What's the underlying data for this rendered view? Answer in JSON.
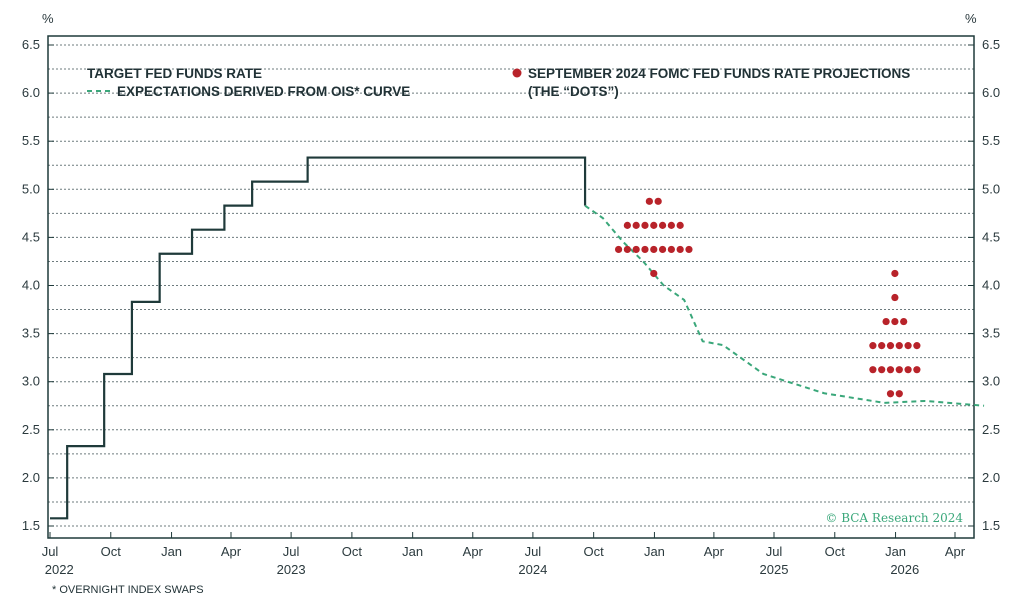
{
  "chart_data": {
    "type": "line",
    "y_unit_left": "%",
    "y_unit_right": "%",
    "ylim": [
      1.5,
      6.5
    ],
    "yticks": [
      "1.5",
      "2.0",
      "2.5",
      "3.0",
      "3.5",
      "4.0",
      "4.5",
      "5.0",
      "5.5",
      "6.0",
      "6.5"
    ],
    "grid": "horizontal dotted",
    "legend_left": [
      "TARGET FED FUNDS RATE",
      "EXPECTATIONS DERIVED FROM OIS* CURVE"
    ],
    "legend_right": [
      "SEPTEMBER 2024 FOMC FED FUNDS RATE PROJECTIONS",
      "(THE “DOTS”)"
    ],
    "x_month_ticks": [
      "Jul",
      "Oct",
      "Jan",
      "Apr",
      "Jul",
      "Oct",
      "Jan",
      "Apr",
      "Jul",
      "Oct",
      "Jan",
      "Apr",
      "Jul",
      "Oct",
      "Jan",
      "Apr"
    ],
    "x_year_labels": [
      "2022",
      "2023",
      "2024",
      "2025",
      "2026"
    ],
    "footnote": "* OVERNIGHT INDEX SWAPS",
    "credit": "© BCA Research 2024",
    "colors": {
      "target": "#1f3a3a",
      "ois": "#3aa77a",
      "dots": "#b8232a",
      "grid": "#6d7b7e"
    },
    "target_fed_funds_rate": [
      {
        "x": "2022-07-01",
        "y": 1.58
      },
      {
        "x": "2022-07-27",
        "y": 2.33
      },
      {
        "x": "2022-09-21",
        "y": 3.08
      },
      {
        "x": "2022-11-02",
        "y": 3.83
      },
      {
        "x": "2022-12-14",
        "y": 4.33
      },
      {
        "x": "2023-02-01",
        "y": 4.58
      },
      {
        "x": "2023-03-22",
        "y": 4.83
      },
      {
        "x": "2023-05-03",
        "y": 5.08
      },
      {
        "x": "2023-07-26",
        "y": 5.33
      },
      {
        "x": "2024-09-18",
        "y": 4.83
      }
    ],
    "ois_expectations": [
      {
        "x": "2024-09-18",
        "y": 4.83
      },
      {
        "x": "2024-10-15",
        "y": 4.7
      },
      {
        "x": "2024-11-15",
        "y": 4.45
      },
      {
        "x": "2024-12-15",
        "y": 4.25
      },
      {
        "x": "2025-01-15",
        "y": 4.0
      },
      {
        "x": "2025-02-15",
        "y": 3.85
      },
      {
        "x": "2025-03-15",
        "y": 3.42
      },
      {
        "x": "2025-04-15",
        "y": 3.38
      },
      {
        "x": "2025-06-15",
        "y": 3.08
      },
      {
        "x": "2025-09-15",
        "y": 2.88
      },
      {
        "x": "2025-12-15",
        "y": 2.78
      },
      {
        "x": "2026-02-15",
        "y": 2.8
      },
      {
        "x": "2026-05-15",
        "y": 2.75
      }
    ],
    "dots_2024": {
      "x_center": "2024-12-31",
      "levels": [
        {
          "y": 4.875,
          "count": 2
        },
        {
          "y": 4.625,
          "count": 7
        },
        {
          "y": 4.375,
          "count": 9
        },
        {
          "y": 4.125,
          "count": 1
        }
      ]
    },
    "dots_2025": {
      "x_center": "2025-12-31",
      "levels": [
        {
          "y": 4.125,
          "count": 1
        },
        {
          "y": 3.875,
          "count": 1
        },
        {
          "y": 3.625,
          "count": 3
        },
        {
          "y": 3.375,
          "count": 6
        },
        {
          "y": 3.125,
          "count": 6
        },
        {
          "y": 2.875,
          "count": 2
        }
      ]
    }
  }
}
